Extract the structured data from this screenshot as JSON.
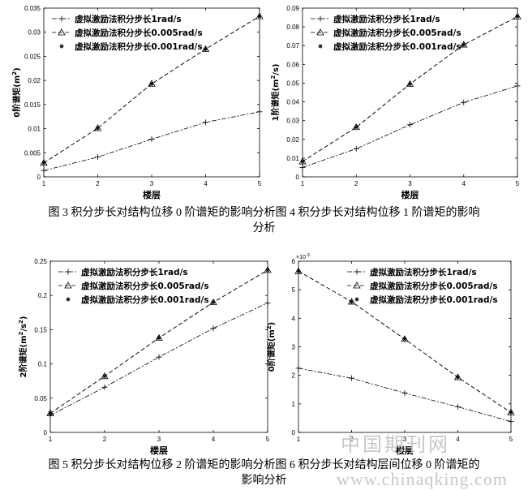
{
  "captions": {
    "row1_line1": "图 3 积分步长对结构位移 0 阶谱矩的影响分析图 4 积分步长对结构位移 1 阶谱矩的影响",
    "row1_line2": "分析",
    "row2_line1": "图 5 积分步长对结构位移 2 阶谱矩的影响分析图 6 积分步长对结构层间位移 0 阶谱矩的",
    "row2_line2": "影响分析"
  },
  "watermark": {
    "cn": "中国期刊网",
    "url": "www.chinaqking.com"
  },
  "colors": {
    "line": "#000000",
    "background": "#ffffff",
    "watermark": "#c8c8c8"
  },
  "chart_data": [
    {
      "type": "line",
      "xlabel": "楼层",
      "ylabel_prefix": "0阶谱矩(m",
      "ylabel_sup": "2",
      "ylabel_suffix": ")",
      "xlim": [
        1,
        5
      ],
      "ylim": [
        0,
        0.035
      ],
      "xticks": [
        1,
        2,
        3,
        4,
        5
      ],
      "xtick_labels": [
        "1",
        "2",
        "3",
        "4",
        "5"
      ],
      "yticks": [
        0,
        0.005,
        0.01,
        0.015,
        0.02,
        0.025,
        0.03,
        0.035
      ],
      "ytick_labels": [
        "0",
        "0.005",
        "0.01",
        "0.015",
        "0.02",
        "0.025",
        "0.03",
        "0.035"
      ],
      "exponent_label": "",
      "legend_position": "top-left",
      "x": [
        1,
        2,
        3,
        4,
        5
      ],
      "series": [
        {
          "name": "虚拟激励法积分步长1rad/s",
          "marker": "plus",
          "dash": "6,2,2,2",
          "values": [
            0.0013,
            0.0041,
            0.0078,
            0.0113,
            0.0135
          ]
        },
        {
          "name": "虚拟激励法积分步长0.005rad/s",
          "marker": "triangle",
          "dash": "5,3",
          "values": [
            0.0029,
            0.0101,
            0.0193,
            0.0265,
            0.0333
          ]
        },
        {
          "name": "虚拟激励法积分步长0.001rad/s",
          "marker": "star",
          "dash": "5,3",
          "values": [
            0.0029,
            0.0101,
            0.0193,
            0.0265,
            0.0333
          ]
        }
      ]
    },
    {
      "type": "line",
      "xlabel": "楼层",
      "ylabel_prefix": "1阶谱矩(m",
      "ylabel_sup": "2",
      "ylabel_suffix": "/s)",
      "xlim": [
        1,
        5
      ],
      "ylim": [
        0,
        0.09
      ],
      "xticks": [
        1,
        2,
        3,
        4,
        5
      ],
      "xtick_labels": [
        "1",
        "2",
        "3",
        "4",
        "5"
      ],
      "yticks": [
        0,
        0.01,
        0.02,
        0.03,
        0.04,
        0.05,
        0.06,
        0.07,
        0.08,
        0.09
      ],
      "ytick_labels": [
        "0",
        "0.01",
        "0.02",
        "0.03",
        "0.04",
        "0.05",
        "0.06",
        "0.07",
        "0.08",
        "0.09"
      ],
      "exponent_label": "",
      "legend_position": "top-left",
      "x": [
        1,
        2,
        3,
        4,
        5
      ],
      "series": [
        {
          "name": "虚拟激励法积分步长1rad/s",
          "marker": "plus",
          "dash": "6,2,2,2",
          "values": [
            0.005,
            0.015,
            0.0278,
            0.0397,
            0.0485
          ]
        },
        {
          "name": "虚拟激励法积分步长0.005rad/s",
          "marker": "triangle",
          "dash": "5,3",
          "values": [
            0.0082,
            0.0265,
            0.0495,
            0.0705,
            0.0855
          ]
        },
        {
          "name": "虚拟激励法积分步长0.001rad/s",
          "marker": "star",
          "dash": "5,3",
          "values": [
            0.0082,
            0.0265,
            0.0495,
            0.0705,
            0.0855
          ]
        }
      ]
    },
    {
      "type": "line",
      "xlabel": "楼层",
      "ylabel_prefix": "2阶谱矩(m",
      "ylabel_sup": "2",
      "ylabel_suffix": "/s",
      "ylabel_sup2": "2",
      "ylabel_suffix2": ")",
      "xlim": [
        1,
        5
      ],
      "ylim": [
        0,
        0.25
      ],
      "xticks": [
        1,
        2,
        3,
        4,
        5
      ],
      "xtick_labels": [
        "1",
        "2",
        "3",
        "4",
        "5"
      ],
      "yticks": [
        0,
        0.05,
        0.1,
        0.15,
        0.2,
        0.25
      ],
      "ytick_labels": [
        "0",
        "0.05",
        "0.1",
        "0.15",
        "0.2",
        "0.25"
      ],
      "exponent_label": "",
      "legend_position": "top-left",
      "x": [
        1,
        2,
        3,
        4,
        5
      ],
      "series": [
        {
          "name": "虚拟激励法积分步长1rad/s",
          "marker": "plus",
          "dash": "6,2,2,2",
          "values": [
            0.025,
            0.066,
            0.11,
            0.152,
            0.189
          ]
        },
        {
          "name": "虚拟激励法积分步长0.005rad/s",
          "marker": "triangle",
          "dash": "5,3",
          "values": [
            0.028,
            0.082,
            0.138,
            0.19,
            0.237
          ]
        },
        {
          "name": "虚拟激励法积分步长0.001rad/s",
          "marker": "star",
          "dash": "5,3",
          "values": [
            0.028,
            0.082,
            0.138,
            0.19,
            0.237
          ]
        }
      ]
    },
    {
      "type": "line",
      "xlabel": "楼层",
      "ylabel_prefix": "0阶谱矩(m",
      "ylabel_sup": "2",
      "ylabel_suffix": ")",
      "xlim": [
        1,
        5
      ],
      "ylim": [
        0,
        6
      ],
      "xticks": [
        1,
        2,
        3,
        4,
        5
      ],
      "xtick_labels": [
        "1",
        "2",
        "3",
        "4",
        "5"
      ],
      "yticks": [
        0,
        1,
        2,
        3,
        4,
        5,
        6
      ],
      "ytick_labels": [
        "0",
        "1",
        "2",
        "3",
        "4",
        "5",
        "6"
      ],
      "exponent_label": "×10",
      "exponent_sup": "-3",
      "legend_position": "top-right",
      "x": [
        1,
        2,
        3,
        4,
        5
      ],
      "series": [
        {
          "name": "虚拟激励法积分步长1rad/s",
          "marker": "plus",
          "dash": "6,2,2,2",
          "values": [
            2.25,
            1.9,
            1.38,
            0.9,
            0.38
          ]
        },
        {
          "name": "虚拟激励法积分步长0.005rad/s",
          "marker": "triangle",
          "dash": "5,3",
          "values": [
            5.65,
            4.58,
            3.27,
            1.93,
            0.7
          ]
        },
        {
          "name": "虚拟激励法积分步长0.001rad/s",
          "marker": "star",
          "dash": "5,3",
          "values": [
            5.65,
            4.58,
            3.27,
            1.93,
            0.7
          ]
        }
      ]
    }
  ]
}
